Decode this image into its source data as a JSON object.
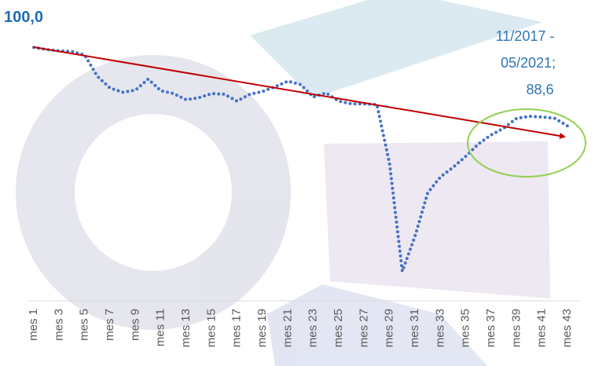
{
  "chart_data": {
    "type": "line",
    "categories": [
      "mes 1",
      null,
      "mes 3",
      null,
      "mes 5",
      null,
      "mes 7",
      null,
      "mes 9",
      null,
      "mes 11",
      null,
      "mes 13",
      null,
      "mes 15",
      null,
      "mes 17",
      null,
      "mes 19",
      null,
      "mes 21",
      null,
      "mes 23",
      null,
      "mes 25",
      null,
      "mes 27",
      null,
      "mes 29",
      null,
      "mes 31",
      null,
      "mes 33",
      null,
      "mes 35",
      null,
      "mes 37",
      null,
      "mes 39",
      null,
      "mes 41",
      null,
      "mes 43"
    ],
    "series": [
      {
        "color": "#4472c4",
        "values": [
          100,
          99.7,
          99.5,
          99.4,
          98.9,
          95.8,
          94.1,
          93.5,
          93.8,
          95.4,
          93.7,
          93.3,
          92.4,
          92.7,
          93.3,
          93.2,
          92.2,
          93.2,
          93.6,
          94.3,
          95.1,
          94.6,
          92.8,
          93.4,
          92.2,
          91.8,
          91.8,
          91.7,
          83.1,
          67.5,
          72.6,
          78.9,
          81.2,
          82.6,
          84.2,
          86.0,
          87.3,
          88.3,
          89.7,
          90.0,
          89.9,
          89.7,
          88.6
        ],
        "value_labels": [
          "100,0",
          null,
          null,
          null,
          null,
          null,
          null,
          null,
          null,
          null,
          null,
          null,
          null,
          null,
          null,
          null,
          null,
          null,
          null,
          null,
          null,
          null,
          null,
          null,
          null,
          null,
          null,
          null,
          null,
          null,
          null,
          null,
          null,
          null,
          null,
          null,
          null,
          null,
          null,
          null,
          null,
          null,
          "88,6"
        ]
      }
    ],
    "annotation": [
      "11/2017 -",
      "05/2021;"
    ],
    "ylim": [
      63,
      103
    ]
  }
}
